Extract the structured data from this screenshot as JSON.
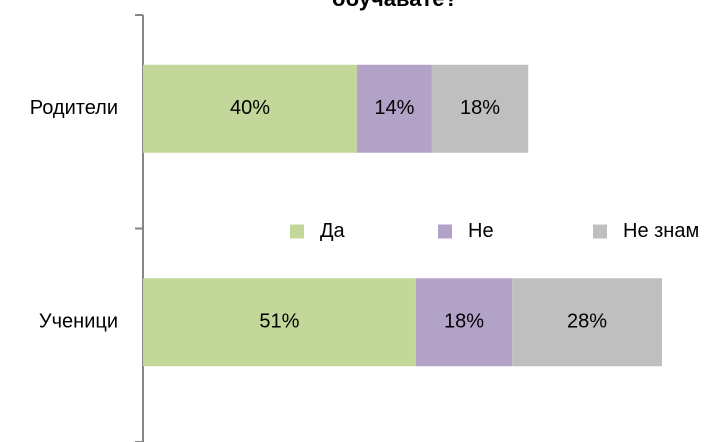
{
  "chart_data": {
    "type": "stacked_barh",
    "title": "обучавате?",
    "categories": [
      "Родители",
      "Ученици"
    ],
    "series": [
      {
        "name": "Да",
        "color": "#c4d79b",
        "values": [
          40,
          51
        ],
        "value_labels": [
          "40%",
          "51%"
        ]
      },
      {
        "name": "Не",
        "color": "#b3a2c7",
        "values": [
          14,
          18
        ],
        "value_labels": [
          "14%",
          "18%"
        ]
      },
      {
        "name": "Не знам",
        "color": "#bfbfbf",
        "values": [
          18,
          28
        ],
        "value_labels": [
          "18%",
          "28%"
        ]
      }
    ],
    "xlim": [
      0,
      100
    ],
    "legend": "center"
  }
}
